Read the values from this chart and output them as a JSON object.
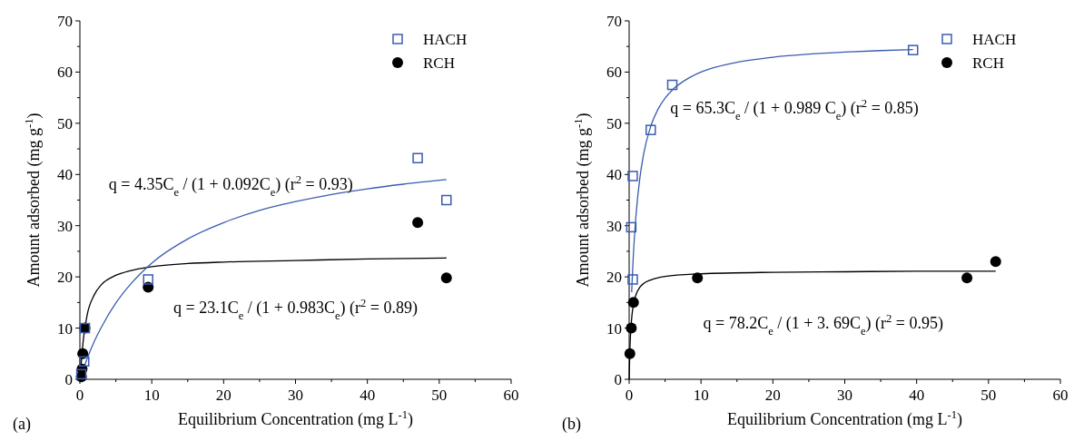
{
  "chart_data": [
    {
      "type": "scatter",
      "xlabel": "Equilibrium Concentration (mg L$^{-1}$)",
      "ylabel": "Amount adsorbed (mg g$^{-1}$)",
      "xlim": [
        0,
        60
      ],
      "ylim": [
        0,
        70
      ],
      "xticks": [
        0,
        10,
        20,
        30,
        40,
        50,
        60
      ],
      "yticks": [
        0,
        10,
        20,
        30,
        40,
        50,
        60,
        70
      ],
      "grid": false,
      "legend": "top right",
      "annotations": [
        "(a)",
        "q = 4.35C$_{e}$ / (1 + 0.092C$_{e}$)  (r$^{2}$ = 0.93)",
        "q = 23.1C$_{e}$ / (1 + 0.983C$_{e}$)  (r$^{2}$ = 0.89)"
      ],
      "series": [
        {
          "name": "HACH",
          "marker": "square",
          "color": "#3a5cb0",
          "x": [
            0.2,
            0.6,
            0.7,
            9.5,
            47,
            51
          ],
          "values": [
            1,
            3.5,
            10,
            19.5,
            43.2,
            35
          ]
        },
        {
          "name": "RCH",
          "marker": "circle",
          "color": "#000000",
          "x": [
            0.2,
            0.3,
            0.4,
            0.7,
            9.5,
            47,
            51
          ],
          "values": [
            0.5,
            2,
            5,
            10,
            18,
            30.6,
            19.8
          ]
        },
        {
          "type": "line",
          "marker": "none",
          "color": "#3a5cb0",
          "x": [
            0,
            0.5,
            1,
            2,
            3,
            5,
            7,
            10,
            15,
            20,
            25,
            30,
            35,
            40,
            45,
            51
          ],
          "values": [
            0,
            2.1,
            4,
            7.4,
            10.2,
            14.9,
            18.5,
            22.7,
            27.4,
            30.6,
            33,
            34.7,
            36.1,
            37.2,
            38.1,
            39
          ]
        },
        {
          "type": "line",
          "marker": "none",
          "color": "#000000",
          "x": [
            0,
            0.5,
            1,
            2,
            3,
            5,
            7,
            10,
            15,
            20,
            30,
            40,
            51
          ],
          "values": [
            0,
            8,
            12.5,
            16.5,
            18.5,
            20.3,
            21.2,
            22,
            22.6,
            22.9,
            23.2,
            23.5,
            23.7
          ]
        }
      ]
    },
    {
      "type": "scatter",
      "xlabel": "Equilibrium Concentration (mg L$^{-1}$)",
      "ylabel": "Amount adsorbed (mg g$^{-1}$)",
      "xlim": [
        0,
        60
      ],
      "ylim": [
        0,
        70
      ],
      "xticks": [
        0,
        10,
        20,
        30,
        40,
        50,
        60
      ],
      "yticks": [
        0,
        10,
        20,
        30,
        40,
        50,
        60,
        70
      ],
      "grid": false,
      "legend": "top right",
      "annotations": [
        "(b)",
        "q = 65.3C$_{e}$ / (1 + 0.989 C$_{e}$)  (r$^{2}$ = 0.85)",
        "q = 78.2C$_{e}$ / (1 + 3. 69C$_{e}$)  (r$^{2}$ = 0.95)"
      ],
      "series": [
        {
          "name": "HACH",
          "marker": "square",
          "color": "#3a5cb0",
          "x": [
            0.5,
            0.3,
            0.5,
            3,
            6,
            39.5
          ],
          "values": [
            19.5,
            29.7,
            39.7,
            48.7,
            57.5,
            64.3
          ]
        },
        {
          "name": "RCH",
          "marker": "circle",
          "color": "#000000",
          "x": [
            0.1,
            0.3,
            0.6,
            9.5,
            47,
            51
          ],
          "values": [
            5,
            10,
            15,
            19.8,
            19.8,
            23
          ]
        },
        {
          "type": "line",
          "marker": "none",
          "color": "#3a5cb0",
          "x": [
            0.35,
            0.5,
            0.75,
            1,
            1.5,
            2,
            3,
            4,
            5,
            6,
            8,
            10,
            15,
            20,
            25,
            30,
            35,
            39.5
          ],
          "values": [
            17,
            21.9,
            28.1,
            32.8,
            39.4,
            43.9,
            49.4,
            52.7,
            54.9,
            56.5,
            58.6,
            60,
            61.9,
            62.9,
            63.5,
            63.9,
            64.2,
            64.4
          ]
        },
        {
          "type": "line",
          "marker": "none",
          "color": "#000000",
          "x": [
            0,
            0.1,
            0.2,
            0.4,
            0.6,
            1,
            1.5,
            2,
            3,
            5,
            10,
            20,
            30,
            40,
            51
          ],
          "values": [
            0,
            5.7,
            9,
            12.6,
            14.6,
            16.7,
            18,
            18.7,
            19.4,
            20.1,
            20.6,
            20.9,
            21,
            21.1,
            21.1
          ]
        }
      ]
    }
  ]
}
